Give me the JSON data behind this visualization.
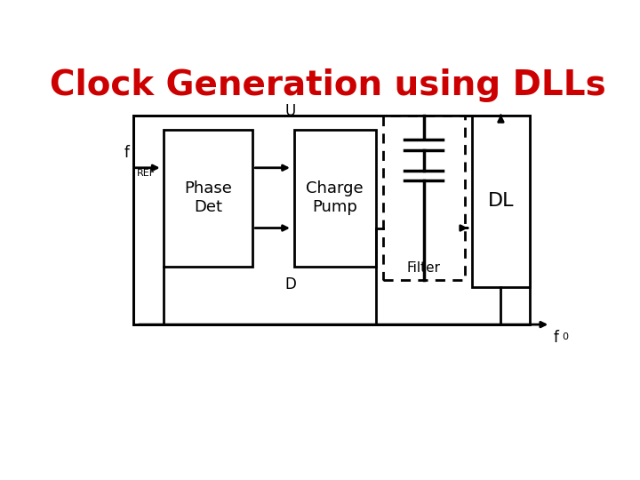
{
  "title": "Clock Generation using DLLs",
  "title_color": "#cc0000",
  "title_fontsize": 28,
  "bg_color": "#ffffff",
  "fref_label": "f",
  "fref_sub": "REF",
  "fo_label": "f",
  "fo_sub": "0",
  "phase_det_label": "Phase\nDet",
  "charge_pump_label": "Charge\nPump",
  "dl_label": "DL",
  "filter_label": "Filter",
  "u_label": "U",
  "d_label": "D",
  "lw": 2.0,
  "lw_thick": 2.5
}
